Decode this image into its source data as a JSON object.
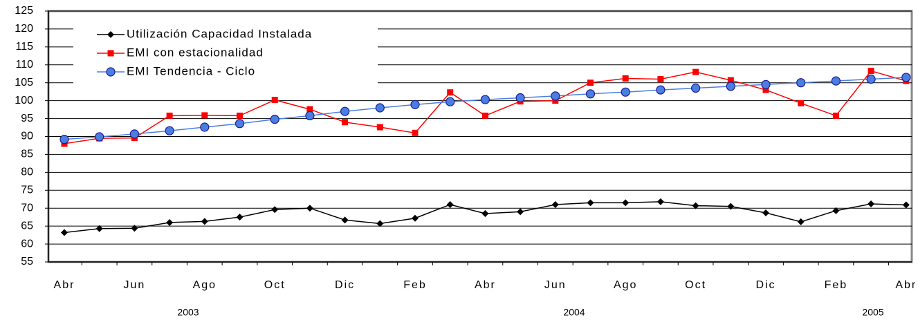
{
  "chart_data": {
    "type": "line",
    "categories": [
      "Abr",
      null,
      "Jun",
      null,
      "Ago",
      null,
      "Oct",
      null,
      "Dic",
      null,
      "Feb",
      null,
      "Abr",
      null,
      "Jun",
      null,
      "Ago",
      null,
      "Oct",
      null,
      "Dic",
      null,
      "Feb",
      null,
      "Abr"
    ],
    "year_labels": [
      "2003",
      "2004",
      "2005"
    ],
    "series": [
      {
        "name": "Utilización Capacidad Instalada",
        "color": "#000000",
        "marker": "diamond",
        "values": [
          63.2,
          64.3,
          64.4,
          66,
          66.3,
          67.5,
          69.6,
          70,
          66.7,
          65.7,
          67.2,
          71,
          68.5,
          69,
          71,
          71.5,
          71.5,
          71.8,
          70.7,
          70.5,
          68.7,
          66.2,
          69.3,
          71.2,
          70.9
        ]
      },
      {
        "name": "EMI con estacionalidad",
        "color": "#ff0000",
        "marker": "square",
        "values": [
          88,
          89.5,
          89.6,
          95.8,
          95.9,
          95.8,
          100.2,
          97.6,
          94,
          92.6,
          91,
          102.3,
          95.8,
          99.8,
          100,
          105,
          106.2,
          106,
          108,
          105.7,
          103,
          99.3,
          95.8,
          108.3,
          105.5
        ]
      },
      {
        "name": "EMI Tendencia - Ciclo",
        "color": "#4a7ee0",
        "marker": "circle",
        "values": [
          89.2,
          89.9,
          90.7,
          91.6,
          92.6,
          93.6,
          94.8,
          95.8,
          97,
          98,
          98.9,
          99.7,
          100.3,
          100.8,
          101.3,
          101.9,
          102.4,
          103,
          103.5,
          104,
          104.5,
          105,
          105.5,
          106,
          106.5
        ]
      }
    ],
    "ylim": [
      55,
      125
    ],
    "yticks": [
      55,
      60,
      65,
      70,
      75,
      80,
      85,
      90,
      95,
      100,
      105,
      110,
      115,
      120,
      125
    ],
    "grid": true
  }
}
